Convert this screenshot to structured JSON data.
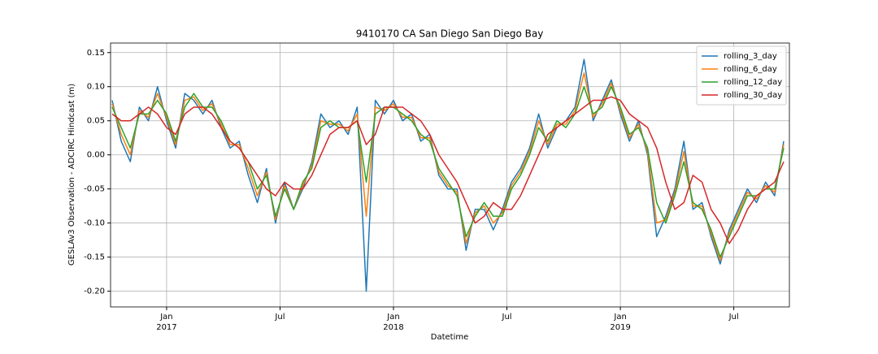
{
  "chart_data": {
    "type": "line",
    "title": "9410170 CA San Diego San Diego Bay",
    "x_label": "Datetime",
    "y_label": "GESLAv3 Observation - ADCIRC Hindcast (m)",
    "x": [
      2016.76,
      2016.8,
      2016.84,
      2016.88,
      2016.92,
      2016.96,
      2017.0,
      2017.04,
      2017.08,
      2017.12,
      2017.16,
      2017.2,
      2017.24,
      2017.28,
      2017.32,
      2017.36,
      2017.4,
      2017.44,
      2017.48,
      2017.52,
      2017.56,
      2017.6,
      2017.64,
      2017.68,
      2017.72,
      2017.76,
      2017.8,
      2017.84,
      2017.88,
      2017.92,
      2017.96,
      2018.0,
      2018.04,
      2018.08,
      2018.12,
      2018.16,
      2018.2,
      2018.24,
      2018.28,
      2018.32,
      2018.36,
      2018.4,
      2018.44,
      2018.48,
      2018.52,
      2018.56,
      2018.6,
      2018.64,
      2018.68,
      2018.72,
      2018.76,
      2018.8,
      2018.84,
      2018.88,
      2018.92,
      2018.96,
      2019.0,
      2019.04,
      2019.08,
      2019.12,
      2019.16,
      2019.2,
      2019.24,
      2019.28,
      2019.32,
      2019.36,
      2019.4,
      2019.44,
      2019.48,
      2019.52,
      2019.56,
      2019.6,
      2019.64,
      2019.68,
      2019.72
    ],
    "series": [
      {
        "name": "rolling_3_day",
        "color": "#1f77b4",
        "values": [
          0.08,
          0.02,
          -0.01,
          0.07,
          0.05,
          0.1,
          0.05,
          0.01,
          0.09,
          0.08,
          0.06,
          0.08,
          0.04,
          0.01,
          0.02,
          -0.03,
          -0.07,
          -0.02,
          -0.1,
          -0.04,
          -0.08,
          -0.05,
          -0.01,
          0.06,
          0.04,
          0.05,
          0.03,
          0.07,
          -0.2,
          0.08,
          0.06,
          0.08,
          0.05,
          0.06,
          0.02,
          0.03,
          -0.03,
          -0.05,
          -0.05,
          -0.14,
          -0.08,
          -0.08,
          -0.11,
          -0.08,
          -0.04,
          -0.02,
          0.01,
          0.06,
          0.01,
          0.04,
          0.05,
          0.07,
          0.14,
          0.05,
          0.08,
          0.11,
          0.06,
          0.02,
          0.05,
          0.0,
          -0.12,
          -0.09,
          -0.05,
          0.02,
          -0.08,
          -0.07,
          -0.12,
          -0.16,
          -0.11,
          -0.08,
          -0.05,
          -0.07,
          -0.04,
          -0.06,
          0.02
        ]
      },
      {
        "name": "rolling_6_day",
        "color": "#ff7f0e",
        "values": [
          0.075,
          0.03,
          0.0,
          0.065,
          0.055,
          0.09,
          0.055,
          0.015,
          0.08,
          0.085,
          0.065,
          0.075,
          0.045,
          0.015,
          0.015,
          -0.02,
          -0.06,
          -0.025,
          -0.095,
          -0.045,
          -0.08,
          -0.045,
          -0.015,
          0.05,
          0.045,
          0.045,
          0.035,
          0.06,
          -0.09,
          0.07,
          0.065,
          0.075,
          0.055,
          0.055,
          0.025,
          0.025,
          -0.025,
          -0.045,
          -0.055,
          -0.13,
          -0.085,
          -0.075,
          -0.1,
          -0.085,
          -0.045,
          -0.025,
          0.005,
          0.05,
          0.015,
          0.045,
          0.045,
          0.065,
          0.12,
          0.055,
          0.075,
          0.105,
          0.065,
          0.025,
          0.045,
          0.005,
          -0.1,
          -0.095,
          -0.055,
          0.005,
          -0.075,
          -0.075,
          -0.115,
          -0.155,
          -0.115,
          -0.085,
          -0.055,
          -0.065,
          -0.045,
          -0.055,
          0.015
        ]
      },
      {
        "name": "rolling_12_day",
        "color": "#2ca02c",
        "values": [
          0.07,
          0.04,
          0.01,
          0.06,
          0.06,
          0.08,
          0.06,
          0.02,
          0.07,
          0.09,
          0.07,
          0.07,
          0.05,
          0.02,
          0.01,
          -0.01,
          -0.05,
          -0.03,
          -0.09,
          -0.05,
          -0.08,
          -0.04,
          -0.02,
          0.04,
          0.05,
          0.04,
          0.04,
          0.05,
          -0.04,
          0.06,
          0.07,
          0.07,
          0.06,
          0.05,
          0.03,
          0.02,
          -0.02,
          -0.04,
          -0.06,
          -0.12,
          -0.09,
          -0.07,
          -0.09,
          -0.09,
          -0.05,
          -0.03,
          0.0,
          0.04,
          0.02,
          0.05,
          0.04,
          0.06,
          0.1,
          0.06,
          0.07,
          0.1,
          0.07,
          0.03,
          0.04,
          0.01,
          -0.07,
          -0.1,
          -0.06,
          -0.01,
          -0.07,
          -0.08,
          -0.11,
          -0.15,
          -0.12,
          -0.09,
          -0.06,
          -0.06,
          -0.05,
          -0.05,
          0.01
        ]
      },
      {
        "name": "rolling_30_day",
        "color": "#d62728",
        "values": [
          0.06,
          0.05,
          0.05,
          0.06,
          0.07,
          0.06,
          0.04,
          0.03,
          0.06,
          0.07,
          0.07,
          0.06,
          0.04,
          0.02,
          0.01,
          -0.01,
          -0.03,
          -0.05,
          -0.06,
          -0.04,
          -0.05,
          -0.05,
          -0.03,
          0.0,
          0.03,
          0.04,
          0.04,
          0.05,
          0.015,
          0.03,
          0.07,
          0.07,
          0.07,
          0.06,
          0.05,
          0.03,
          0.0,
          -0.02,
          -0.04,
          -0.07,
          -0.1,
          -0.09,
          -0.07,
          -0.08,
          -0.08,
          -0.06,
          -0.03,
          0.0,
          0.03,
          0.04,
          0.05,
          0.06,
          0.07,
          0.08,
          0.08,
          0.085,
          0.08,
          0.06,
          0.05,
          0.04,
          0.01,
          -0.04,
          -0.08,
          -0.07,
          -0.03,
          -0.04,
          -0.08,
          -0.1,
          -0.13,
          -0.11,
          -0.08,
          -0.06,
          -0.05,
          -0.04,
          -0.01
        ]
      }
    ],
    "xlim": [
      2016.753,
      2019.745
    ],
    "xticks": [
      {
        "value": 2017,
        "label": "Jan 2017"
      },
      {
        "value": 2017.5,
        "label": "Jul"
      },
      {
        "value": 2018,
        "label": "Jan 2018"
      },
      {
        "value": 2018.5,
        "label": "Jul"
      },
      {
        "value": 2019,
        "label": "Jan 2019"
      },
      {
        "value": 2019.5,
        "label": "Jul"
      }
    ],
    "ylim": [
      -0.223,
      0.164
    ],
    "yticks": [
      {
        "value": -0.2,
        "label": "-0.20"
      },
      -0.15,
      {
        "value": -0.1,
        "label": "-0.10"
      },
      -0.05,
      {
        "value": 0,
        "label": "0.00"
      },
      0.05,
      {
        "value": 0.1,
        "label": "0.10"
      },
      0.15
    ],
    "grid": true,
    "legend": "upper right"
  }
}
